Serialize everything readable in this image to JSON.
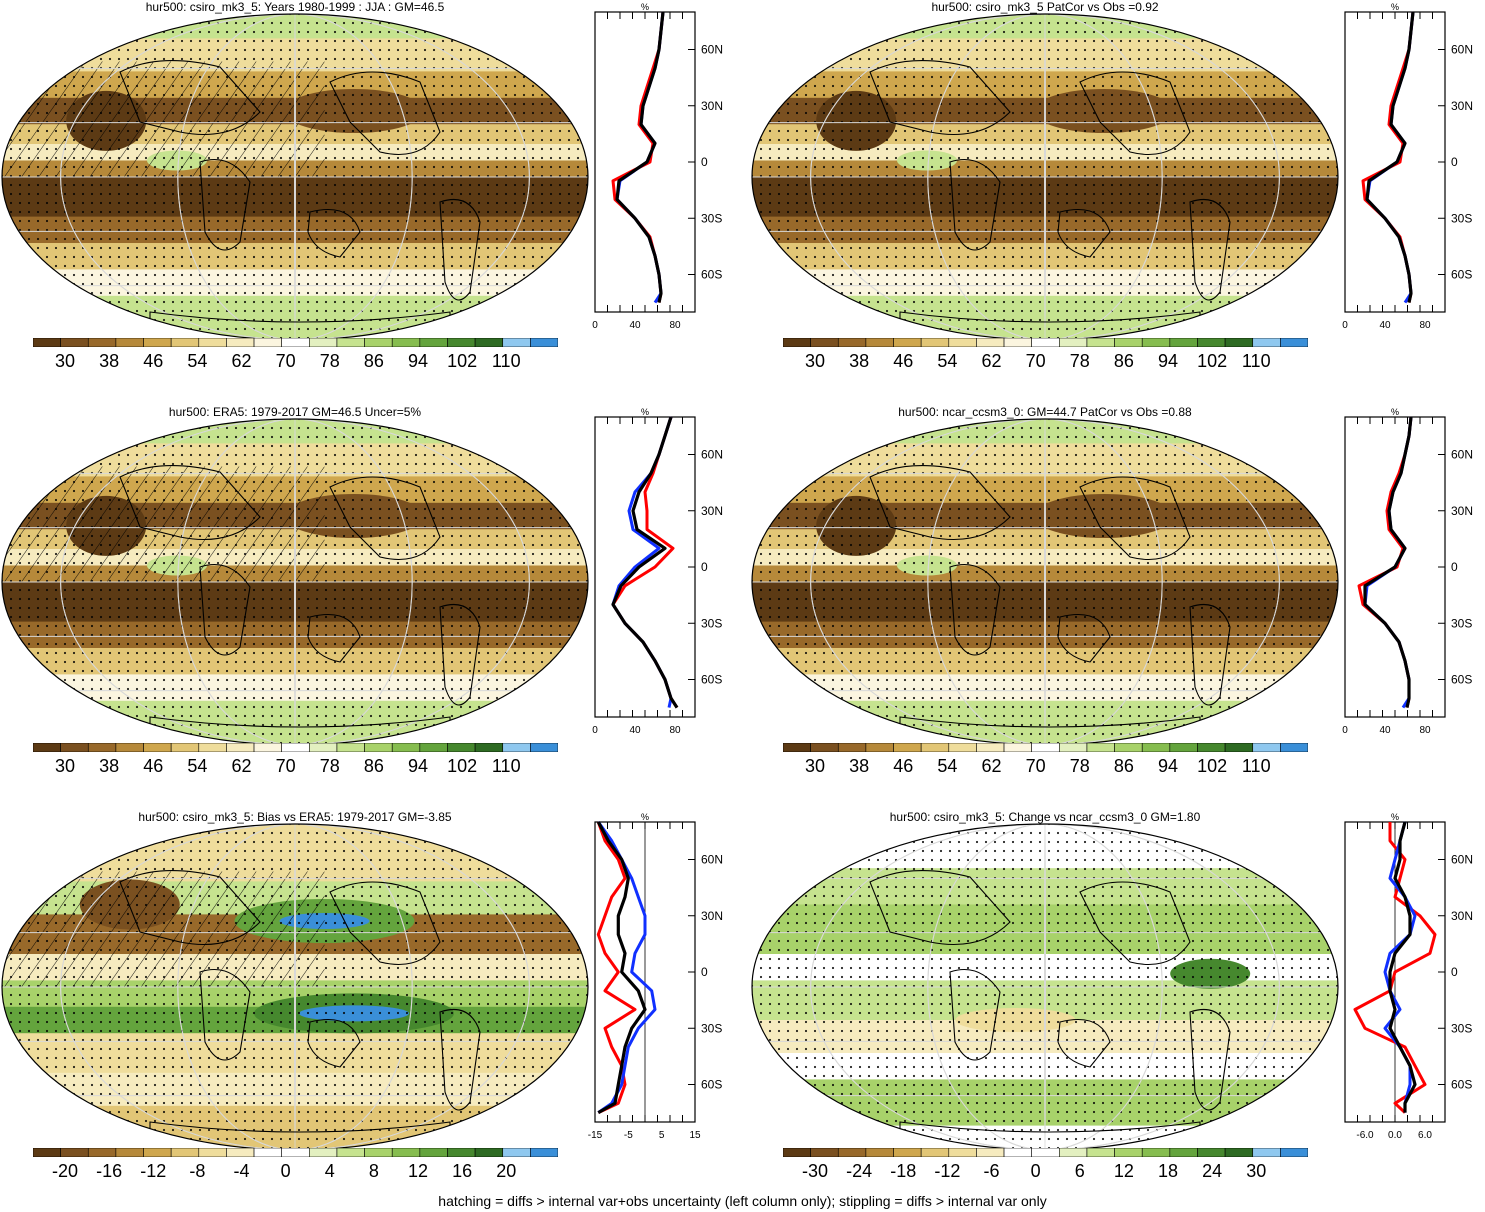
{
  "footer": "hatching = diffs > internal var+obs uncertainty (left column only); stippling = diffs > internal var only",
  "zonal_unit": "%",
  "lat_labels": [
    "60N",
    "30N",
    "0",
    "30S",
    "60S"
  ],
  "colors": {
    "abs_scale": [
      "#5c3a14",
      "#7a5020",
      "#98692a",
      "#b6893a",
      "#cfa74e",
      "#e2c676",
      "#efdd9c",
      "#f6ebbf",
      "#fbf5df",
      "#ffffff",
      "#e3f0c0",
      "#c6e38f",
      "#a8d26a",
      "#86bd4f",
      "#64a43d",
      "#46882e",
      "#2e6b23",
      "#8fc8ef",
      "#3a8fd8"
    ],
    "red": "#ff0000",
    "blue": "#1030ff",
    "black": "#000000"
  },
  "panels": [
    {
      "title": "hur500: csiro_mk3_5: Years 1980-1999 : JJA : GM=46.5",
      "colorbar_labels": [
        "30",
        "38",
        "46",
        "54",
        "62",
        "70",
        "78",
        "86",
        "94",
        "102",
        "110"
      ],
      "zonal_ticks": [
        "0",
        "40",
        "80"
      ],
      "chart_data": {
        "type": "heatmap",
        "title": "hur500: csiro_mk3_5: Years 1980-1999 : JJA : GM=46.5",
        "variable": "hur500",
        "unit": "%",
        "colorbar_ticks": [
          30,
          38,
          46,
          54,
          62,
          70,
          78,
          86,
          94,
          102,
          110
        ],
        "zonal_xlim": [
          0,
          100
        ],
        "zonal_lat": [
          80,
          70,
          60,
          50,
          40,
          30,
          20,
          10,
          0,
          -10,
          -20,
          -30,
          -40,
          -50,
          -60,
          -70,
          -75
        ],
        "zonal_series": [
          {
            "color": "red",
            "values": [
              68,
              66,
              64,
              58,
              52,
              46,
              44,
              58,
              55,
              18,
              20,
              40,
              55,
              60,
              64,
              66,
              64
            ]
          },
          {
            "color": "blue",
            "values": [
              68,
              66,
              64,
              60,
              54,
              48,
              46,
              60,
              52,
              25,
              22,
              40,
              54,
              60,
              64,
              66,
              60
            ]
          },
          {
            "color": "black",
            "values": [
              68,
              66,
              64,
              60,
              54,
              48,
              46,
              60,
              52,
              24,
              22,
              40,
              54,
              60,
              64,
              66,
              64
            ]
          }
        ]
      }
    },
    {
      "title": "hur500: csiro_mk3_5 PatCor vs Obs =0.92",
      "colorbar_labels": [
        "30",
        "38",
        "46",
        "54",
        "62",
        "70",
        "78",
        "86",
        "94",
        "102",
        "110"
      ],
      "zonal_ticks": [
        "0",
        "40",
        "80"
      ],
      "chart_data": {
        "type": "heatmap",
        "title": "hur500: csiro_mk3_5 PatCor vs Obs =0.92",
        "variable": "hur500",
        "unit": "%",
        "colorbar_ticks": [
          30,
          38,
          46,
          54,
          62,
          70,
          78,
          86,
          94,
          102,
          110
        ],
        "zonal_xlim": [
          0,
          100
        ],
        "zonal_lat": [
          80,
          70,
          60,
          50,
          40,
          30,
          20,
          10,
          0,
          -10,
          -20,
          -30,
          -40,
          -50,
          -60,
          -70,
          -75
        ],
        "zonal_series": [
          {
            "color": "red",
            "values": [
              68,
              66,
              64,
              58,
              52,
              46,
              44,
              58,
              55,
              18,
              20,
              40,
              55,
              60,
              64,
              66,
              64
            ]
          },
          {
            "color": "blue",
            "values": [
              68,
              66,
              64,
              60,
              54,
              48,
              46,
              60,
              52,
              25,
              22,
              40,
              54,
              60,
              64,
              66,
              60
            ]
          },
          {
            "color": "black",
            "values": [
              68,
              66,
              64,
              60,
              54,
              48,
              46,
              60,
              52,
              24,
              22,
              40,
              54,
              60,
              64,
              66,
              64
            ]
          }
        ]
      }
    },
    {
      "title": "hur500: ERA5: 1979-2017 GM=46.5 Uncer=5%",
      "colorbar_labels": [
        "30",
        "38",
        "46",
        "54",
        "62",
        "70",
        "78",
        "86",
        "94",
        "102",
        "110"
      ],
      "zonal_ticks": [
        "0",
        "40",
        "80"
      ],
      "chart_data": {
        "type": "heatmap",
        "title": "hur500: ERA5: 1979-2017 GM=46.5 Uncer=5%",
        "variable": "hur500",
        "unit": "%",
        "colorbar_ticks": [
          30,
          38,
          46,
          54,
          62,
          70,
          78,
          86,
          94,
          102,
          110
        ],
        "zonal_xlim": [
          0,
          100
        ],
        "zonal_lat": [
          80,
          70,
          60,
          50,
          40,
          30,
          20,
          10,
          0,
          -10,
          -20,
          -30,
          -40,
          -50,
          -60,
          -70,
          -75
        ],
        "zonal_series": [
          {
            "color": "red",
            "values": [
              76,
              70,
              64,
              58,
              50,
              52,
              52,
              78,
              60,
              30,
              18,
              30,
              48,
              60,
              70,
              76,
              82
            ]
          },
          {
            "color": "blue",
            "values": [
              76,
              70,
              64,
              56,
              40,
              34,
              38,
              64,
              40,
              24,
              18,
              30,
              48,
              60,
              70,
              76,
              74
            ]
          },
          {
            "color": "black",
            "values": [
              76,
              70,
              64,
              56,
              44,
              38,
              42,
              70,
              44,
              26,
              18,
              30,
              48,
              60,
              70,
              76,
              82
            ]
          }
        ]
      }
    },
    {
      "title": "hur500: ncar_ccsm3_0: GM=44.7 PatCor vs Obs =0.88",
      "colorbar_labels": [
        "30",
        "38",
        "46",
        "54",
        "62",
        "70",
        "78",
        "86",
        "94",
        "102",
        "110"
      ],
      "zonal_ticks": [
        "0",
        "40",
        "80"
      ],
      "chart_data": {
        "type": "heatmap",
        "title": "hur500: ncar_ccsm3_0: GM=44.7 PatCor vs Obs =0.88",
        "variable": "hur500",
        "unit": "%",
        "colorbar_ticks": [
          30,
          38,
          46,
          54,
          62,
          70,
          78,
          86,
          94,
          102,
          110
        ],
        "zonal_xlim": [
          0,
          100
        ],
        "zonal_lat": [
          80,
          70,
          60,
          50,
          40,
          30,
          20,
          10,
          0,
          -10,
          -20,
          -30,
          -40,
          -50,
          -60,
          -70,
          -75
        ],
        "zonal_series": [
          {
            "color": "red",
            "values": [
              66,
              64,
              60,
              54,
              46,
              42,
              44,
              58,
              52,
              14,
              18,
              40,
              54,
              60,
              64,
              64,
              62
            ]
          },
          {
            "color": "blue",
            "values": [
              66,
              64,
              60,
              56,
              48,
              44,
              46,
              60,
              50,
              22,
              20,
              40,
              54,
              60,
              64,
              64,
              58
            ]
          },
          {
            "color": "black",
            "values": [
              66,
              64,
              60,
              56,
              48,
              44,
              46,
              60,
              50,
              20,
              20,
              40,
              54,
              60,
              64,
              64,
              62
            ]
          }
        ]
      }
    },
    {
      "title": "hur500: csiro_mk3_5: Bias vs ERA5: 1979-2017 GM=-3.85",
      "colorbar_labels": [
        "-20",
        "-16",
        "-12",
        "-8",
        "-4",
        "0",
        "4",
        "8",
        "12",
        "16",
        "20"
      ],
      "zonal_ticks": [
        "-15",
        "-5",
        "5",
        "15"
      ],
      "chart_data": {
        "type": "heatmap",
        "title": "hur500: csiro_mk3_5: Bias vs ERA5: 1979-2017 GM=-3.85",
        "variable": "hur500",
        "unit": "%",
        "colorbar_ticks": [
          -20,
          -16,
          -12,
          -8,
          -4,
          0,
          4,
          8,
          12,
          16,
          20
        ],
        "zonal_xlim": [
          -15,
          15
        ],
        "zonal_lat": [
          80,
          70,
          60,
          50,
          40,
          30,
          20,
          10,
          0,
          -10,
          -20,
          -30,
          -40,
          -50,
          -60,
          -70,
          -75
        ],
        "zonal_series": [
          {
            "color": "red",
            "values": [
              -14,
              -12,
              -8,
              -6,
              -10,
              -12,
              -14,
              -12,
              -8,
              -12,
              -3,
              -12,
              -10,
              -7,
              -6,
              -8,
              -14
            ]
          },
          {
            "color": "blue",
            "values": [
              -14,
              -10,
              -7,
              -4,
              -2,
              0,
              0,
              -3,
              -4,
              2,
              3,
              -2,
              -5,
              -6,
              -7,
              -10,
              -14
            ]
          },
          {
            "color": "black",
            "values": [
              -14,
              -11,
              -7,
              -5,
              -6,
              -8,
              -8,
              -6,
              -7,
              -2,
              0,
              -4,
              -6,
              -7,
              -8,
              -9,
              -14
            ]
          }
        ]
      }
    },
    {
      "title": "hur500: csiro_mk3_5: Change vs ncar_ccsm3_0 GM=1.80",
      "colorbar_labels": [
        "-30",
        "-24",
        "-18",
        "-12",
        "-6",
        "0",
        "6",
        "12",
        "18",
        "24",
        "30"
      ],
      "zonal_ticks": [
        "-6.0",
        "0.0",
        "6.0"
      ],
      "chart_data": {
        "type": "heatmap",
        "title": "hur500: csiro_mk3_5: Change vs ncar_ccsm3_0 GM=1.80",
        "variable": "hur500",
        "unit": "%",
        "colorbar_ticks": [
          -30,
          -24,
          -18,
          -12,
          -6,
          0,
          6,
          12,
          18,
          24,
          30
        ],
        "zonal_xlim": [
          -10,
          10
        ],
        "zonal_lat": [
          80,
          70,
          60,
          50,
          40,
          30,
          20,
          10,
          0,
          -10,
          -20,
          -30,
          -40,
          -50,
          -60,
          -70,
          -75
        ],
        "zonal_series": [
          {
            "color": "red",
            "values": [
              -1,
              -1,
              2,
              1,
              0,
              5,
              8,
              7,
              0,
              -1,
              -8,
              -6,
              2,
              4,
              6,
              0,
              2
            ]
          },
          {
            "color": "blue",
            "values": [
              2,
              1,
              0,
              -1,
              2,
              4,
              3,
              -1,
              -2,
              -1,
              1,
              -2,
              1,
              3,
              3,
              2,
              2
            ]
          },
          {
            "color": "black",
            "values": [
              2,
              1,
              1,
              0,
              2,
              3,
              3,
              0,
              -1,
              -1,
              0,
              -1,
              1,
              3,
              4,
              2,
              2
            ]
          }
        ]
      }
    }
  ]
}
